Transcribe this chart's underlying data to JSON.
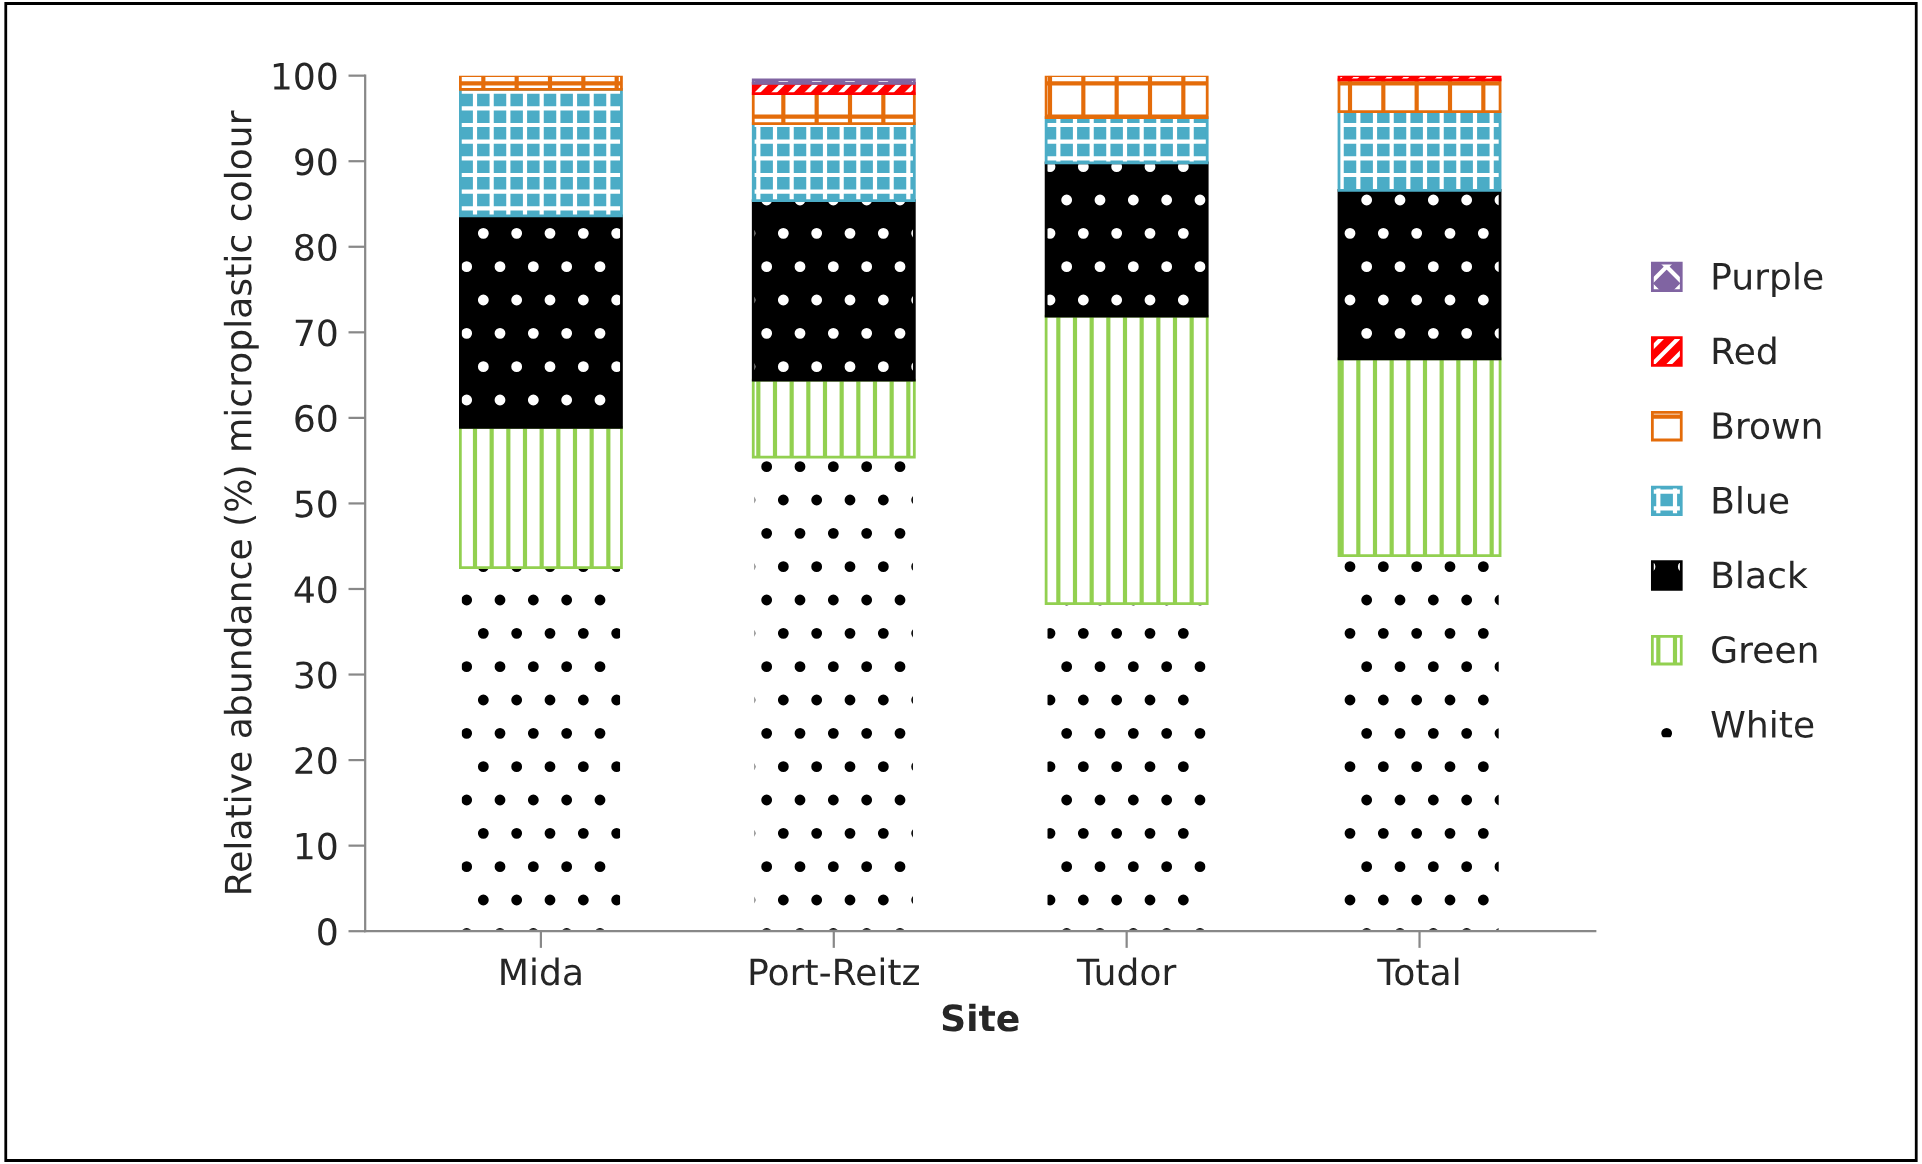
{
  "chart_data": {
    "type": "bar",
    "stacked": true,
    "xlabel": "Site",
    "ylabel": "Relative abundance (%) microplastic colour",
    "categories": [
      "Mida",
      "Port-Reitz",
      "Tudor",
      "Total"
    ],
    "series": [
      {
        "name": "White",
        "color": "#ffffff",
        "values": [
          42.5,
          55.4,
          38.3,
          43.9
        ]
      },
      {
        "name": "Green",
        "color": "#92d050",
        "values": [
          16.4,
          9.0,
          33.6,
          23.0
        ]
      },
      {
        "name": "Black",
        "color": "#000000",
        "values": [
          24.7,
          21.0,
          17.9,
          19.7
        ]
      },
      {
        "name": "Blue",
        "color": "#4bacc6",
        "values": [
          14.8,
          9.0,
          5.3,
          9.2
        ]
      },
      {
        "name": "Brown",
        "color": "#e46c0a",
        "values": [
          1.6,
          3.5,
          4.9,
          3.7
        ]
      },
      {
        "name": "Red",
        "color": "#ff0000",
        "values": [
          0,
          1.2,
          0,
          0.5
        ]
      },
      {
        "name": "Purple",
        "color": "#8064a2",
        "values": [
          0,
          0.4,
          0,
          0
        ]
      }
    ],
    "ylim": [
      0,
      100
    ],
    "yticks": [
      0,
      10,
      20,
      30,
      40,
      50,
      60,
      70,
      80,
      90,
      100
    ],
    "legend": "right",
    "grid": false
  }
}
